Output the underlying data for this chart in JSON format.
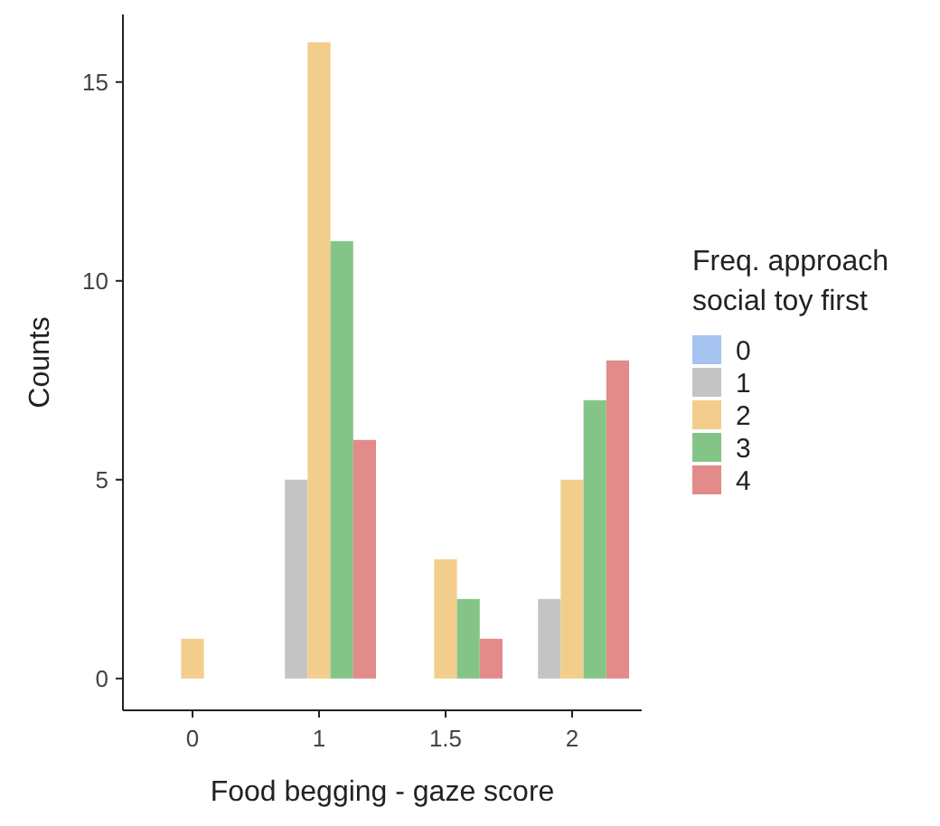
{
  "chart_data": {
    "type": "bar",
    "xlabel": "Food begging - gaze score",
    "ylabel": "Counts",
    "legend_title": "Freq. approach\nsocial toy first",
    "legend": "right",
    "grid": false,
    "categories": [
      "0",
      "1",
      "1.5",
      "2"
    ],
    "ylim": [
      -0.8,
      16.7
    ],
    "yticks": [
      0,
      5,
      10,
      15
    ],
    "series": [
      {
        "name": "0",
        "color": "#a6c4ef",
        "values": [
          null,
          null,
          null,
          null
        ]
      },
      {
        "name": "1",
        "color": "#c4c4c4",
        "values": [
          null,
          5,
          null,
          2
        ]
      },
      {
        "name": "2",
        "color": "#f2cd8c",
        "values": [
          1,
          16,
          3,
          5
        ]
      },
      {
        "name": "3",
        "color": "#84c587",
        "values": [
          null,
          11,
          2,
          7
        ]
      },
      {
        "name": "4",
        "color": "#e38a8a",
        "values": [
          null,
          6,
          1,
          8
        ]
      }
    ]
  }
}
